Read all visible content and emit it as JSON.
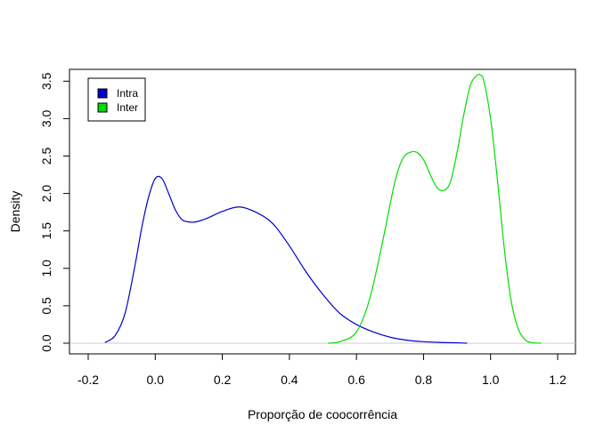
{
  "chart_data": {
    "type": "line",
    "title": "",
    "xlabel": "Proporção de coocorrência",
    "ylabel": "Density",
    "xlim": [
      -0.2,
      1.2
    ],
    "ylim": [
      0,
      3.5
    ],
    "x_ticks": [
      -0.2,
      0.0,
      0.2,
      0.4,
      0.6,
      0.8,
      1.0,
      1.2
    ],
    "x_tick_labels": [
      "-0.2",
      "0.0",
      "0.2",
      "0.4",
      "0.6",
      "0.8",
      "1.0",
      "1.2"
    ],
    "y_ticks": [
      0,
      0.5,
      1,
      1.5,
      2,
      2.5,
      3,
      3.5
    ],
    "y_tick_labels": [
      "0.0",
      "0.5",
      "1.0",
      "1.5",
      "2.0",
      "2.5",
      "3.0",
      "3.5"
    ],
    "grid": false,
    "baseline": 0,
    "legend": {
      "position": "top-left"
    },
    "series": [
      {
        "name": "Intra",
        "color": "#0000cc",
        "x": [
          -0.15,
          -0.12,
          -0.09,
          -0.06,
          -0.04,
          -0.02,
          0.0,
          0.02,
          0.04,
          0.06,
          0.08,
          0.1,
          0.12,
          0.15,
          0.2,
          0.25,
          0.3,
          0.35,
          0.4,
          0.45,
          0.5,
          0.55,
          0.6,
          0.65,
          0.7,
          0.75,
          0.8,
          0.85,
          0.9,
          0.93
        ],
        "y": [
          0.01,
          0.1,
          0.4,
          1.05,
          1.55,
          1.95,
          2.2,
          2.2,
          2.0,
          1.78,
          1.65,
          1.62,
          1.62,
          1.66,
          1.76,
          1.82,
          1.75,
          1.6,
          1.3,
          0.95,
          0.65,
          0.4,
          0.25,
          0.15,
          0.08,
          0.04,
          0.02,
          0.01,
          0.005,
          0.0
        ]
      },
      {
        "name": "Inter",
        "color": "#00dd00",
        "x": [
          0.515,
          0.55,
          0.6,
          0.64,
          0.68,
          0.7,
          0.72,
          0.74,
          0.76,
          0.78,
          0.8,
          0.82,
          0.84,
          0.86,
          0.88,
          0.9,
          0.92,
          0.94,
          0.96,
          0.97,
          0.98,
          1.0,
          1.02,
          1.04,
          1.06,
          1.08,
          1.1,
          1.12,
          1.15
        ],
        "y": [
          0.0,
          0.02,
          0.15,
          0.6,
          1.4,
          1.85,
          2.25,
          2.48,
          2.55,
          2.55,
          2.45,
          2.25,
          2.08,
          2.04,
          2.15,
          2.55,
          3.05,
          3.45,
          3.58,
          3.58,
          3.5,
          3.0,
          2.2,
          1.3,
          0.6,
          0.22,
          0.06,
          0.01,
          0.0
        ]
      }
    ]
  }
}
